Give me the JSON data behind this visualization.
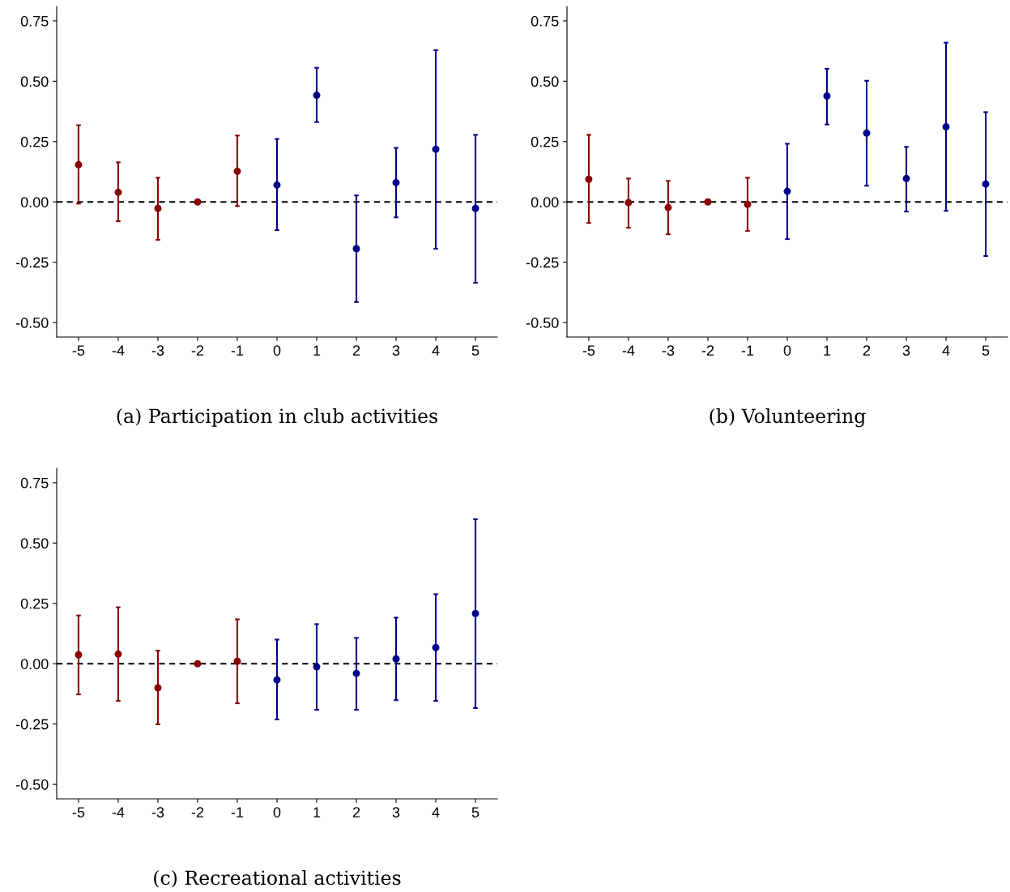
{
  "chart_data": [
    {
      "type": "scatter",
      "title": "(a) Participation in club activities",
      "categories": [
        "-5",
        "-4",
        "-3",
        "-2",
        "-1",
        "0",
        "1",
        "2",
        "3",
        "4",
        "5"
      ],
      "marker": "circle",
      "ylim": [
        -0.56,
        0.81
      ],
      "yticks": [
        {
          "value": -0.5,
          "label": "-0.50"
        },
        {
          "value": -0.25,
          "label": "-0.25"
        },
        {
          "value": 0,
          "label": "0.00"
        },
        {
          "value": 0.25,
          "label": "0.25"
        },
        {
          "value": 0.5,
          "label": "0.50"
        },
        {
          "value": 0.75,
          "label": "0.75"
        }
      ],
      "ref_lines": [
        {
          "axis": "y",
          "value": 0,
          "color": "#000000",
          "line_style": "dashed"
        }
      ],
      "series": [
        {
          "color": "#8b0000",
          "values": [
            0.154,
            0.04,
            -0.027,
            0,
            0.127,
            null,
            null,
            null,
            null,
            null,
            null
          ],
          "errors": [
            [
              -0.007,
              0.318
            ],
            [
              -0.08,
              0.164
            ],
            [
              -0.157,
              0.1
            ],
            null,
            [
              -0.017,
              0.275
            ],
            null,
            null,
            null,
            null,
            null,
            null
          ]
        },
        {
          "color": "#00008b",
          "values": [
            null,
            null,
            null,
            null,
            null,
            0.07,
            0.442,
            -0.194,
            0.08,
            0.218,
            -0.027
          ],
          "errors": [
            null,
            null,
            null,
            null,
            null,
            [
              -0.117,
              0.261
            ],
            [
              0.331,
              0.556
            ],
            [
              -0.415,
              0.027
            ],
            [
              -0.064,
              0.224
            ],
            [
              -0.194,
              0.629
            ],
            [
              -0.335,
              0.278
            ]
          ]
        }
      ]
    },
    {
      "type": "scatter",
      "title": "(b) Volunteering",
      "categories": [
        "-5",
        "-4",
        "-3",
        "-2",
        "-1",
        "0",
        "1",
        "2",
        "3",
        "4",
        "5"
      ],
      "marker": "circle",
      "ylim": [
        -0.56,
        0.81
      ],
      "yticks": [
        {
          "value": -0.5,
          "label": "-0.50"
        },
        {
          "value": -0.25,
          "label": "-0.25"
        },
        {
          "value": 0,
          "label": "0.00"
        },
        {
          "value": 0.25,
          "label": "0.25"
        },
        {
          "value": 0.5,
          "label": "0.50"
        },
        {
          "value": 0.75,
          "label": "0.75"
        }
      ],
      "ref_lines": [
        {
          "axis": "y",
          "value": 0,
          "color": "#000000",
          "line_style": "dashed"
        }
      ],
      "series": [
        {
          "color": "#8b0000",
          "values": [
            0.094,
            -0.003,
            -0.023,
            0,
            -0.01,
            null,
            null,
            null,
            null,
            null,
            null
          ],
          "errors": [
            [
              -0.087,
              0.278
            ],
            [
              -0.107,
              0.097
            ],
            [
              -0.134,
              0.087
            ],
            null,
            [
              -0.12,
              0.1
            ],
            null,
            null,
            null,
            null,
            null,
            null
          ]
        },
        {
          "color": "#00008b",
          "values": [
            null,
            null,
            null,
            null,
            null,
            0.044,
            0.439,
            0.285,
            0.097,
            0.311,
            0.074
          ],
          "errors": [
            null,
            null,
            null,
            null,
            null,
            [
              -0.154,
              0.241
            ],
            [
              0.321,
              0.552
            ],
            [
              0.067,
              0.502
            ],
            [
              -0.04,
              0.228
            ],
            [
              -0.037,
              0.66
            ],
            [
              -0.224,
              0.372
            ]
          ]
        }
      ]
    },
    {
      "type": "scatter",
      "title": "(c) Recreational activities",
      "categories": [
        "-5",
        "-4",
        "-3",
        "-2",
        "-1",
        "0",
        "1",
        "2",
        "3",
        "4",
        "5"
      ],
      "marker": "circle",
      "ylim": [
        -0.56,
        0.81
      ],
      "yticks": [
        {
          "value": -0.5,
          "label": "-0.50"
        },
        {
          "value": -0.25,
          "label": "-0.25"
        },
        {
          "value": 0,
          "label": "0.00"
        },
        {
          "value": 0.25,
          "label": "0.25"
        },
        {
          "value": 0.5,
          "label": "0.50"
        },
        {
          "value": 0.75,
          "label": "0.75"
        }
      ],
      "ref_lines": [
        {
          "axis": "y",
          "value": 0,
          "color": "#000000",
          "line_style": "dashed"
        }
      ],
      "series": [
        {
          "color": "#8b0000",
          "values": [
            0.037,
            0.04,
            -0.1,
            0,
            0.01,
            null,
            null,
            null,
            null,
            null,
            null
          ],
          "errors": [
            [
              -0.127,
              0.2
            ],
            [
              -0.154,
              0.234
            ],
            [
              -0.251,
              0.054
            ],
            null,
            [
              -0.164,
              0.184
            ],
            null,
            null,
            null,
            null,
            null,
            null
          ]
        },
        {
          "color": "#00008b",
          "values": [
            null,
            null,
            null,
            null,
            null,
            -0.067,
            -0.013,
            -0.04,
            0.02,
            0.067,
            0.208
          ],
          "errors": [
            null,
            null,
            null,
            null,
            null,
            [
              -0.231,
              0.1
            ],
            [
              -0.191,
              0.164
            ],
            [
              -0.191,
              0.107
            ],
            [
              -0.151,
              0.191
            ],
            [
              -0.154,
              0.288
            ],
            [
              -0.184,
              0.599
            ]
          ]
        }
      ]
    }
  ]
}
